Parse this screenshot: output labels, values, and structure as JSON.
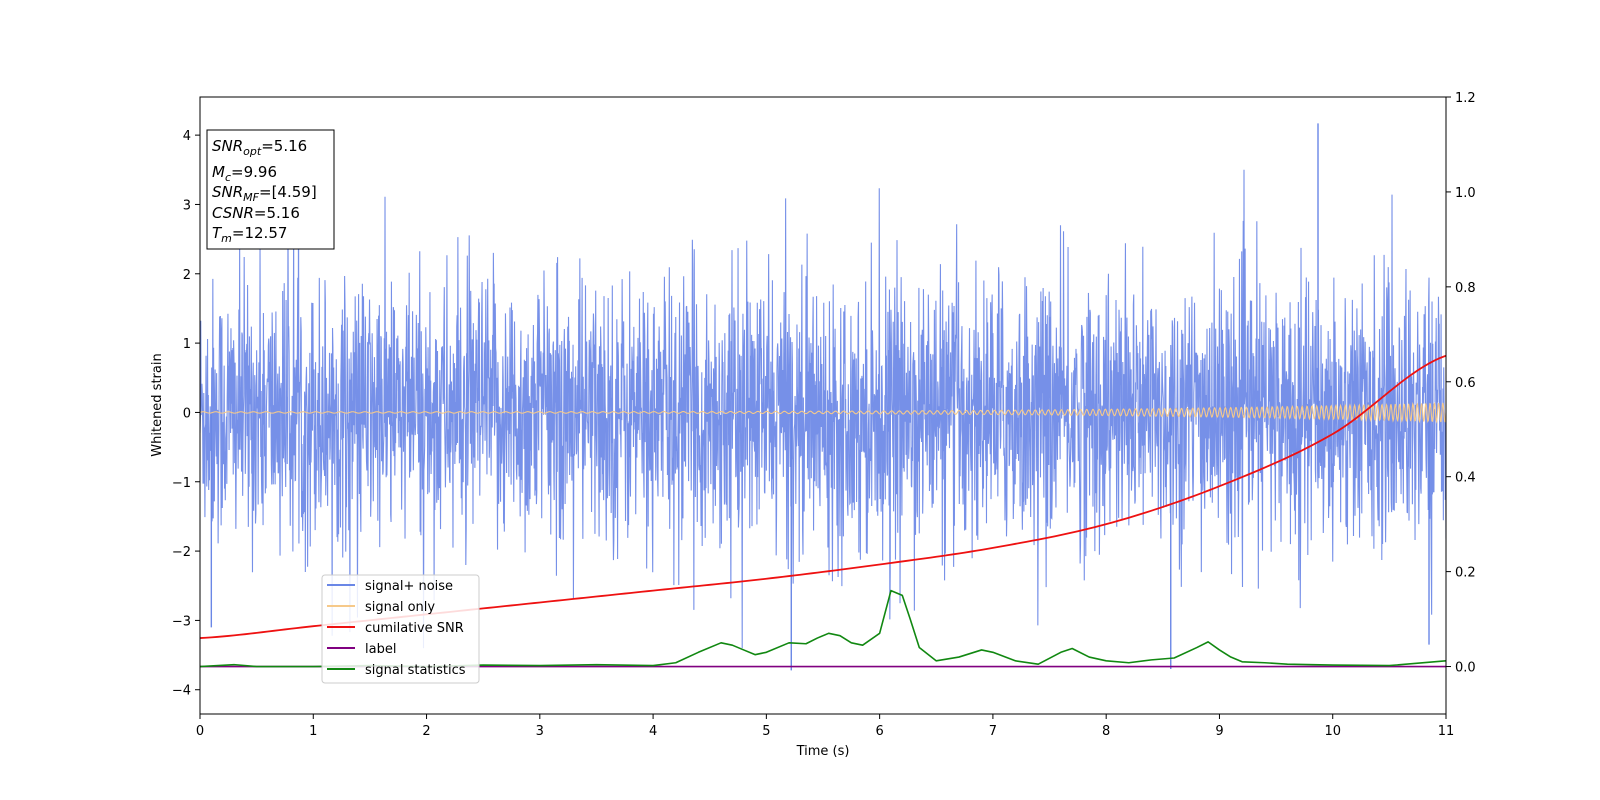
{
  "chart_data": {
    "type": "line",
    "xlabel": "Time (s)",
    "ylabel": "Whitened strain",
    "xlim": [
      0,
      11
    ],
    "ylim": [
      -4.35,
      4.55
    ],
    "y2lim": [
      -0.1,
      1.2
    ],
    "xticks": [
      0,
      1,
      2,
      3,
      4,
      5,
      6,
      7,
      8,
      9,
      10,
      11
    ],
    "yticks": [
      -4,
      -3,
      -2,
      -1,
      0,
      1,
      2,
      3,
      4
    ],
    "y2ticks": [
      "0.0",
      "0.2",
      "0.4",
      "0.6",
      "0.8",
      "1.0",
      "1.2"
    ],
    "grid": false,
    "legend_position": "lower-left",
    "colors": {
      "signal_noise": "#6a87e6",
      "signal_only": "#f6c98a",
      "cumulative_snr": "#ee1111",
      "label": "#800080",
      "signal_statistics": "#118811"
    },
    "series": [
      {
        "name": "signal+ noise",
        "axis": "left",
        "description_values": "noise band",
        "typical_range": [
          -2.0,
          2.0
        ],
        "spike_max": 4.17,
        "spike_min": -3.72
      },
      {
        "name": "signal only",
        "axis": "left",
        "amplitude_start": 0.01,
        "amplitude_end": 0.14
      },
      {
        "name": "cumilative SNR",
        "axis": "right",
        "x": [
          0,
          1,
          2,
          3,
          4,
          5,
          6,
          7,
          8,
          9,
          10,
          11
        ],
        "values": [
          0.06,
          0.085,
          0.11,
          0.135,
          0.16,
          0.185,
          0.215,
          0.25,
          0.3,
          0.38,
          0.49,
          0.655
        ]
      },
      {
        "name": "label",
        "axis": "right",
        "x": [
          0,
          11
        ],
        "values": [
          0.0,
          0.0
        ]
      },
      {
        "name": "signal statistics",
        "axis": "right",
        "x": [
          0,
          0.3,
          0.5,
          1,
          1.5,
          2,
          2.5,
          3,
          3.5,
          4,
          4.2,
          4.4,
          4.6,
          4.7,
          4.8,
          4.9,
          5,
          5.2,
          5.35,
          5.45,
          5.55,
          5.65,
          5.75,
          5.85,
          6,
          6.1,
          6.2,
          6.27,
          6.35,
          6.5,
          6.7,
          6.9,
          7,
          7.2,
          7.4,
          7.6,
          7.7,
          7.85,
          8,
          8.2,
          8.4,
          8.6,
          8.8,
          8.9,
          9,
          9.1,
          9.2,
          9.4,
          9.6,
          10,
          10.5,
          11
        ],
        "values": [
          0.0,
          0.004,
          0.0,
          0.0,
          0.002,
          0.0,
          0.003,
          0.002,
          0.004,
          0.002,
          0.008,
          0.03,
          0.05,
          0.045,
          0.035,
          0.025,
          0.03,
          0.05,
          0.048,
          0.06,
          0.07,
          0.065,
          0.05,
          0.045,
          0.07,
          0.16,
          0.15,
          0.1,
          0.04,
          0.012,
          0.02,
          0.035,
          0.03,
          0.012,
          0.005,
          0.03,
          0.038,
          0.02,
          0.012,
          0.008,
          0.014,
          0.018,
          0.04,
          0.052,
          0.035,
          0.02,
          0.01,
          0.008,
          0.005,
          0.003,
          0.002,
          0.012
        ]
      }
    ],
    "annotation": {
      "lines": [
        {
          "var": "SNR",
          "sub": "opt",
          "rest": "=5.16"
        },
        {
          "var": "M",
          "sub": "c",
          "rest": "=9.96"
        },
        {
          "var": "SNR",
          "sub": "MF",
          "rest": "=[4.59]"
        },
        {
          "var": "CSNR",
          "sub": "",
          "rest": "=5.16"
        },
        {
          "var": "T",
          "sub": "m",
          "rest": "=12.57"
        }
      ]
    }
  }
}
